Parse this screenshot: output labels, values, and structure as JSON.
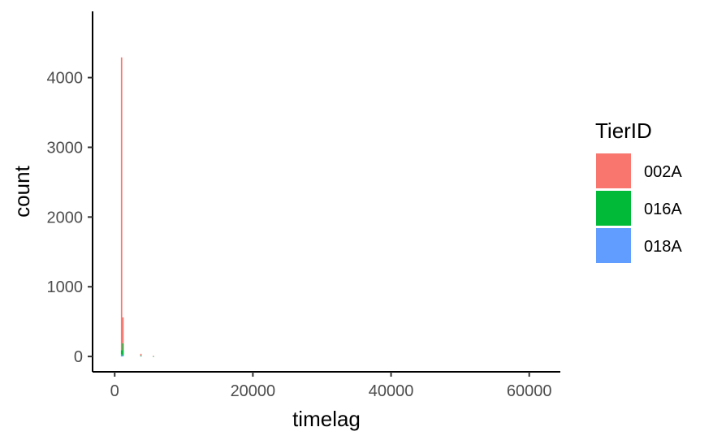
{
  "chart_data": {
    "type": "bar",
    "xlabel": "timelag",
    "ylabel": "count",
    "xlim": [
      -3200,
      64500
    ],
    "ylim": [
      -220,
      4950
    ],
    "x_ticks": [
      {
        "value": 0,
        "label": "0"
      },
      {
        "value": 20000,
        "label": "20000"
      },
      {
        "value": 40000,
        "label": "40000"
      },
      {
        "value": 60000,
        "label": "60000"
      }
    ],
    "y_ticks": [
      {
        "value": 0,
        "label": "0"
      },
      {
        "value": 1000,
        "label": "1000"
      },
      {
        "value": 2000,
        "label": "2000"
      },
      {
        "value": 3000,
        "label": "3000"
      },
      {
        "value": 4000,
        "label": "4000"
      }
    ],
    "grid": false,
    "legend": {
      "title": "TierID",
      "placement": "right",
      "entries": [
        {
          "name": "002A",
          "color": "#F8766D"
        },
        {
          "name": "016A",
          "color": "#00BA38"
        },
        {
          "name": "018A",
          "color": "#619CFF"
        }
      ]
    },
    "bin_width": 200,
    "stacked": true,
    "bins": [
      {
        "x": 1000,
        "values": {
          "002A": 4200,
          "016A": 60,
          "018A": 30
        }
      },
      {
        "x": 1200,
        "values": {
          "002A": 370,
          "016A": 180,
          "018A": 10
        }
      },
      {
        "x": 3800,
        "values": {
          "002A": 25,
          "016A": 8,
          "018A": 5
        }
      },
      {
        "x": 5600,
        "values": {
          "002A": 6,
          "016A": 2,
          "018A": 1
        }
      }
    ]
  }
}
